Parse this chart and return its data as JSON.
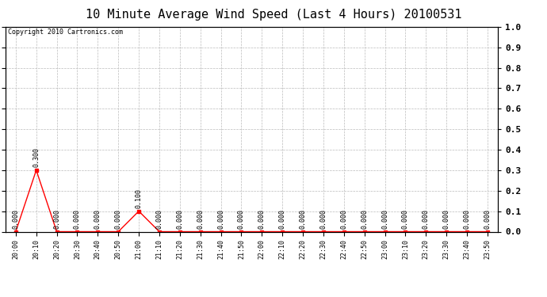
{
  "title": "10 Minute Average Wind Speed (Last 4 Hours) 20100531",
  "copyright": "Copyright 2010 Cartronics.com",
  "x_labels": [
    "20:00",
    "20:10",
    "20:20",
    "20:30",
    "20:40",
    "20:50",
    "21:00",
    "21:10",
    "21:20",
    "21:30",
    "21:40",
    "21:50",
    "22:00",
    "22:10",
    "22:20",
    "22:30",
    "22:40",
    "22:50",
    "23:00",
    "23:10",
    "23:20",
    "23:30",
    "23:40",
    "23:50"
  ],
  "y_values": [
    0.0,
    0.3,
    0.0,
    0.0,
    0.0,
    0.0,
    0.1,
    0.0,
    0.0,
    0.0,
    0.0,
    0.0,
    0.0,
    0.0,
    0.0,
    0.0,
    0.0,
    0.0,
    0.0,
    0.0,
    0.0,
    0.0,
    0.0,
    0.0
  ],
  "line_color": "#ff0000",
  "marker_color": "#ff0000",
  "grid_color": "#bbbbbb",
  "background_color": "#ffffff",
  "plot_bg_color": "#ffffff",
  "ylim": [
    0.0,
    1.0
  ],
  "yticks": [
    0.0,
    0.1,
    0.2,
    0.3,
    0.4,
    0.5,
    0.6,
    0.7,
    0.8,
    0.9,
    1.0
  ],
  "title_fontsize": 11,
  "xlabel_fontsize": 6,
  "ylabel_fontsize": 8,
  "annotation_fontsize": 6,
  "copyright_fontsize": 6
}
